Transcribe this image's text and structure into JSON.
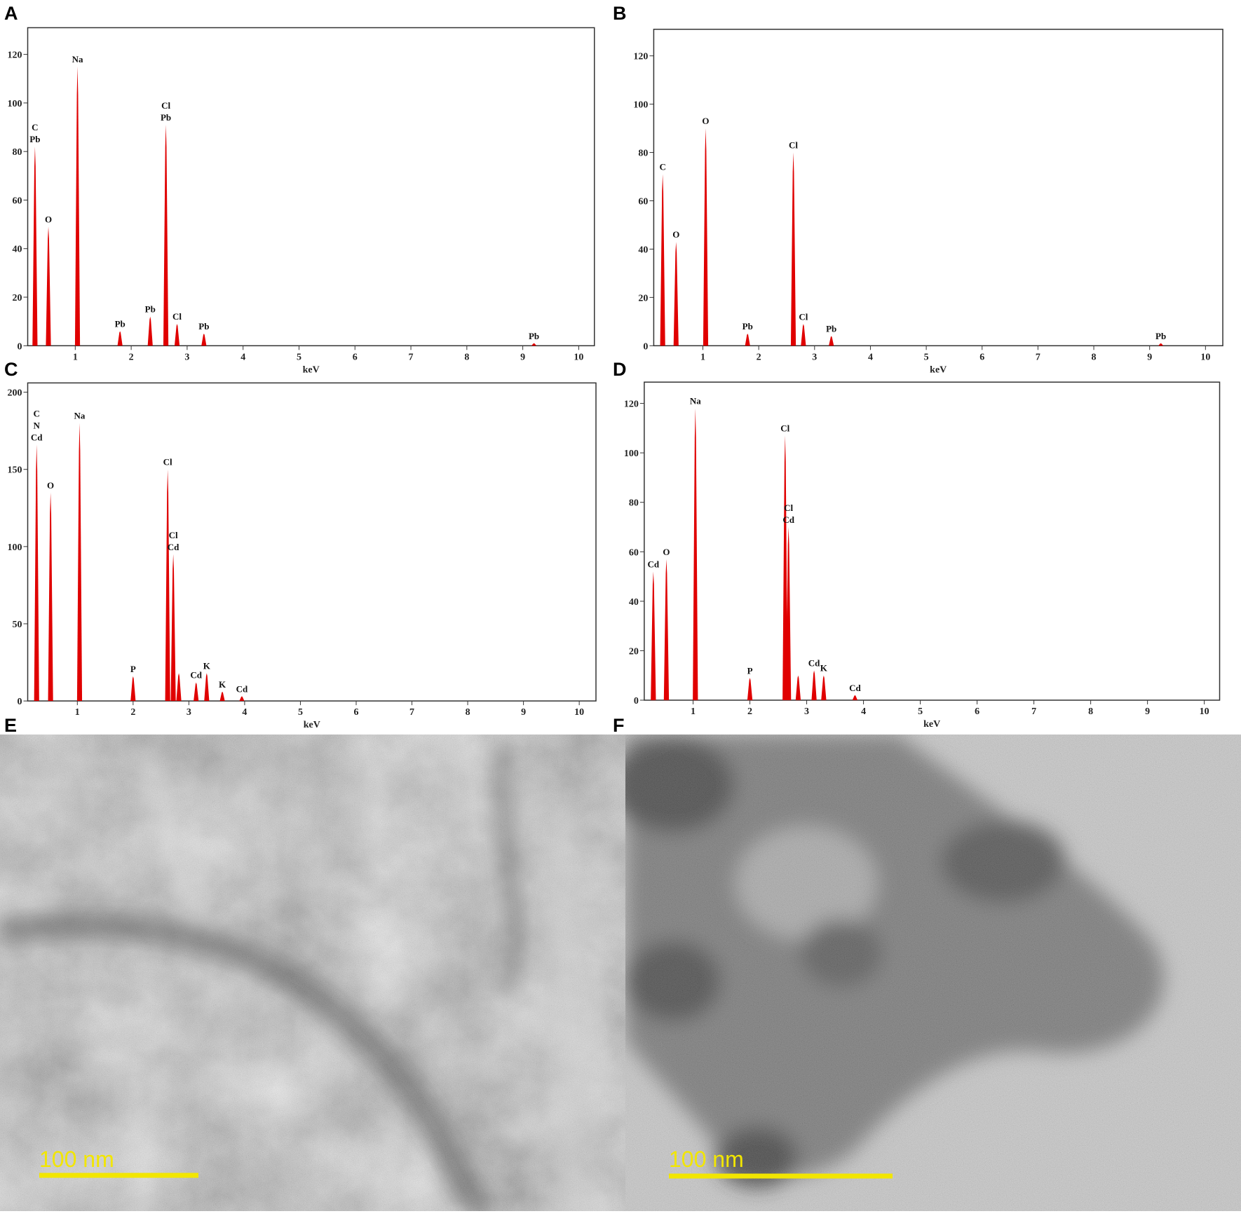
{
  "chart_data": [
    {
      "type": "spectrum",
      "panel_label": "A",
      "x_label": "keV",
      "color": "#e00000",
      "xlim": [
        0.15,
        10.28
      ],
      "ylim": [
        0,
        131
      ],
      "xticks": [
        1,
        2,
        3,
        4,
        5,
        6,
        7,
        8,
        9,
        10
      ],
      "yticks": [
        0,
        20,
        40,
        60,
        80,
        100,
        120
      ],
      "x": [
        0.28,
        0.52,
        1.04,
        1.8,
        2.34,
        2.62,
        2.82,
        3.3,
        9.2
      ],
      "values": [
        82,
        49,
        115,
        6,
        12,
        91,
        9,
        5,
        1
      ],
      "labels": [
        [
          "C",
          "Pb"
        ],
        [
          "O"
        ],
        [
          "Na"
        ],
        [
          "Pb"
        ],
        [
          "Pb"
        ],
        [
          "Cl",
          "Pb"
        ],
        [
          "Cl"
        ],
        [
          "Pb"
        ],
        [
          "Pb"
        ]
      ]
    },
    {
      "type": "spectrum",
      "panel_label": "B",
      "x_label": "keV",
      "color": "#e00000",
      "xlim": [
        0.12,
        10.31
      ],
      "ylim": [
        0,
        131
      ],
      "xticks": [
        1,
        2,
        3,
        4,
        5,
        6,
        7,
        8,
        9,
        10
      ],
      "yticks": [
        0,
        20,
        40,
        60,
        80,
        100,
        120
      ],
      "x": [
        0.28,
        0.52,
        1.05,
        1.8,
        2.62,
        2.8,
        3.3,
        9.2
      ],
      "values": [
        71,
        43,
        90,
        5,
        80,
        9,
        4,
        1
      ],
      "labels": [
        [
          "C"
        ],
        [
          "O"
        ],
        [
          "O"
        ],
        [
          "Pb"
        ],
        [
          "Cl"
        ],
        [
          "Cl"
        ],
        [
          "Pb"
        ],
        [
          "Pb"
        ]
      ]
    },
    {
      "type": "spectrum",
      "panel_label": "C",
      "x_label": "keV",
      "color": "#e00000",
      "xlim": [
        0.11,
        10.3
      ],
      "ylim": [
        0,
        206
      ],
      "xticks": [
        1,
        2,
        3,
        4,
        5,
        6,
        7,
        8,
        9,
        10
      ],
      "yticks": [
        0,
        50,
        100,
        150,
        200
      ],
      "x": [
        0.27,
        0.52,
        1.04,
        2.0,
        2.62,
        2.72,
        2.82,
        3.13,
        3.32,
        3.6,
        3.95
      ],
      "values": [
        166,
        135,
        180,
        16,
        150,
        95,
        18,
        12,
        18,
        6,
        3
      ],
      "labels": [
        [
          "C",
          "N",
          "Cd"
        ],
        [
          "O"
        ],
        [
          "Na"
        ],
        [
          "P"
        ],
        [
          "Cl"
        ],
        [
          "Cl",
          "Cd"
        ],
        null,
        [
          "Cd"
        ],
        [
          "K"
        ],
        [
          "K"
        ],
        [
          "Cd"
        ]
      ]
    },
    {
      "type": "spectrum",
      "panel_label": "D",
      "x_label": "keV",
      "color": "#e00000",
      "xlim": [
        0.14,
        10.27
      ],
      "ylim": [
        0,
        128.6
      ],
      "xticks": [
        1,
        2,
        3,
        4,
        5,
        6,
        7,
        8,
        9,
        10
      ],
      "yticks": [
        0,
        20,
        40,
        60,
        80,
        100,
        120
      ],
      "x": [
        0.3,
        0.53,
        1.04,
        2.0,
        2.62,
        2.68,
        2.85,
        3.13,
        3.3,
        3.85
      ],
      "values": [
        52,
        57,
        118,
        9,
        107,
        70,
        10,
        12,
        10,
        2
      ],
      "labels": [
        [
          "Cd"
        ],
        [
          "O"
        ],
        [
          "Na"
        ],
        [
          "P"
        ],
        [
          "Cl"
        ],
        [
          "Cl",
          "Cd"
        ],
        null,
        [
          "Cd"
        ],
        [
          "K"
        ],
        [
          "Cd"
        ]
      ]
    }
  ],
  "images": [
    {
      "panel_label": "E",
      "scale_label": "100 nm"
    },
    {
      "panel_label": "F",
      "scale_label": "100 nm"
    }
  ]
}
